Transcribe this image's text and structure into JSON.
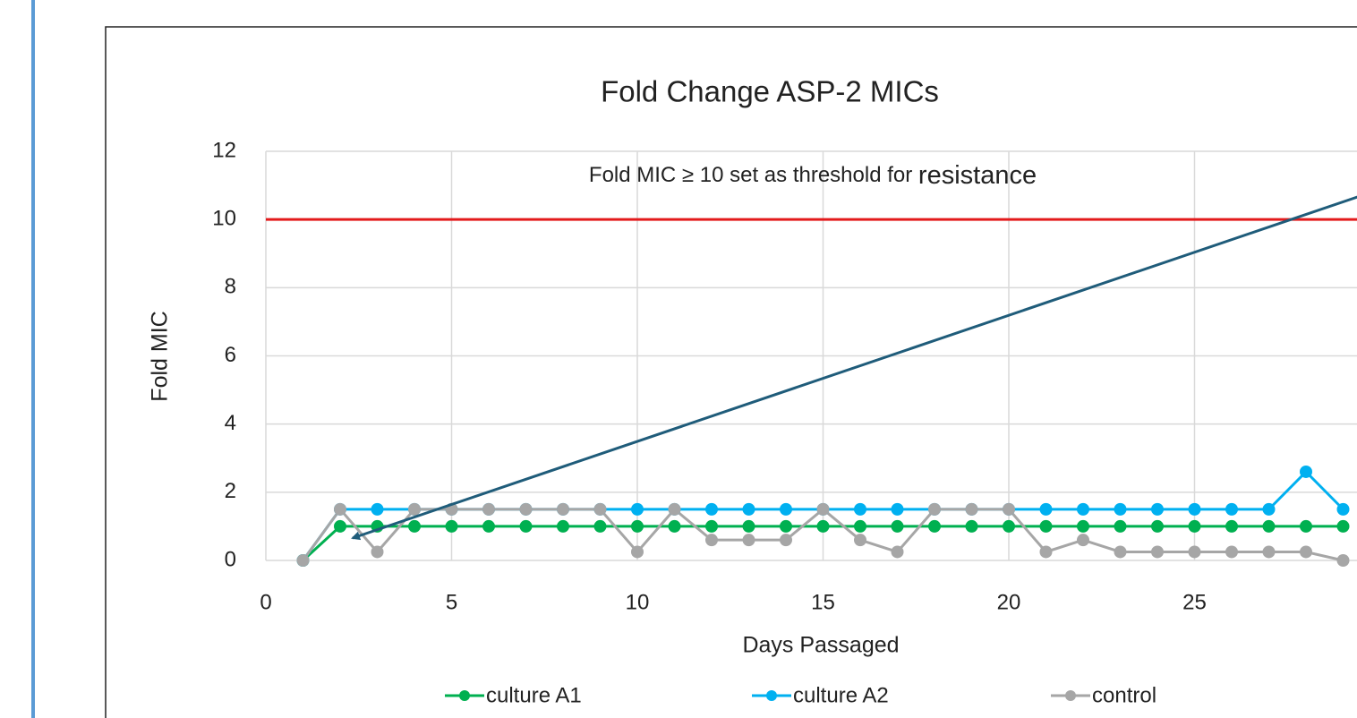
{
  "chart_data": {
    "type": "line",
    "title": "Fold Change ASP-2 MICs",
    "x_label": "Days Passaged",
    "y_label": "Fold MIC",
    "annotation": "Fold MIC ≥ 10 set as threshold for",
    "annotation_emphasis": "resistance",
    "threshold": 10,
    "threshold_color": "#e31a1c",
    "x": [
      1,
      2,
      3,
      4,
      5,
      6,
      7,
      8,
      9,
      10,
      11,
      12,
      13,
      14,
      15,
      16,
      17,
      18,
      19,
      20,
      21,
      22,
      23,
      24,
      25,
      26,
      27,
      28,
      29
    ],
    "series": [
      {
        "name": "culture A1",
        "color": "#00b050",
        "values": [
          0,
          1,
          1,
          1,
          1,
          1,
          1,
          1,
          1,
          1,
          1,
          1,
          1,
          1,
          1,
          1,
          1,
          1,
          1,
          1,
          1,
          1,
          1,
          1,
          1,
          1,
          1,
          1,
          1
        ]
      },
      {
        "name": "culture A2",
        "color": "#00b0f0",
        "values": [
          0,
          1.5,
          1.5,
          1.5,
          1.5,
          1.5,
          1.5,
          1.5,
          1.5,
          1.5,
          1.5,
          1.5,
          1.5,
          1.5,
          1.5,
          1.5,
          1.5,
          1.5,
          1.5,
          1.5,
          1.5,
          1.5,
          1.5,
          1.5,
          1.5,
          1.5,
          1.5,
          2.6,
          1.5
        ]
      },
      {
        "name": "control",
        "color": "#a6a6a6",
        "values": [
          0,
          1.5,
          0.25,
          1.5,
          1.5,
          1.5,
          1.5,
          1.5,
          1.5,
          0.25,
          1.5,
          0.6,
          0.6,
          0.6,
          1.5,
          0.6,
          0.25,
          1.5,
          1.5,
          1.5,
          0.25,
          0.6,
          0.25,
          0.25,
          0.25,
          0.25,
          0.25,
          0.25,
          0
        ]
      }
    ],
    "xlim": [
      0,
      35
    ],
    "xticks": [
      0,
      5,
      10,
      15,
      20,
      25
    ],
    "ylim": [
      0,
      12
    ],
    "yticks": [
      0,
      2,
      4,
      6,
      8,
      10,
      12
    ],
    "grid": true
  }
}
